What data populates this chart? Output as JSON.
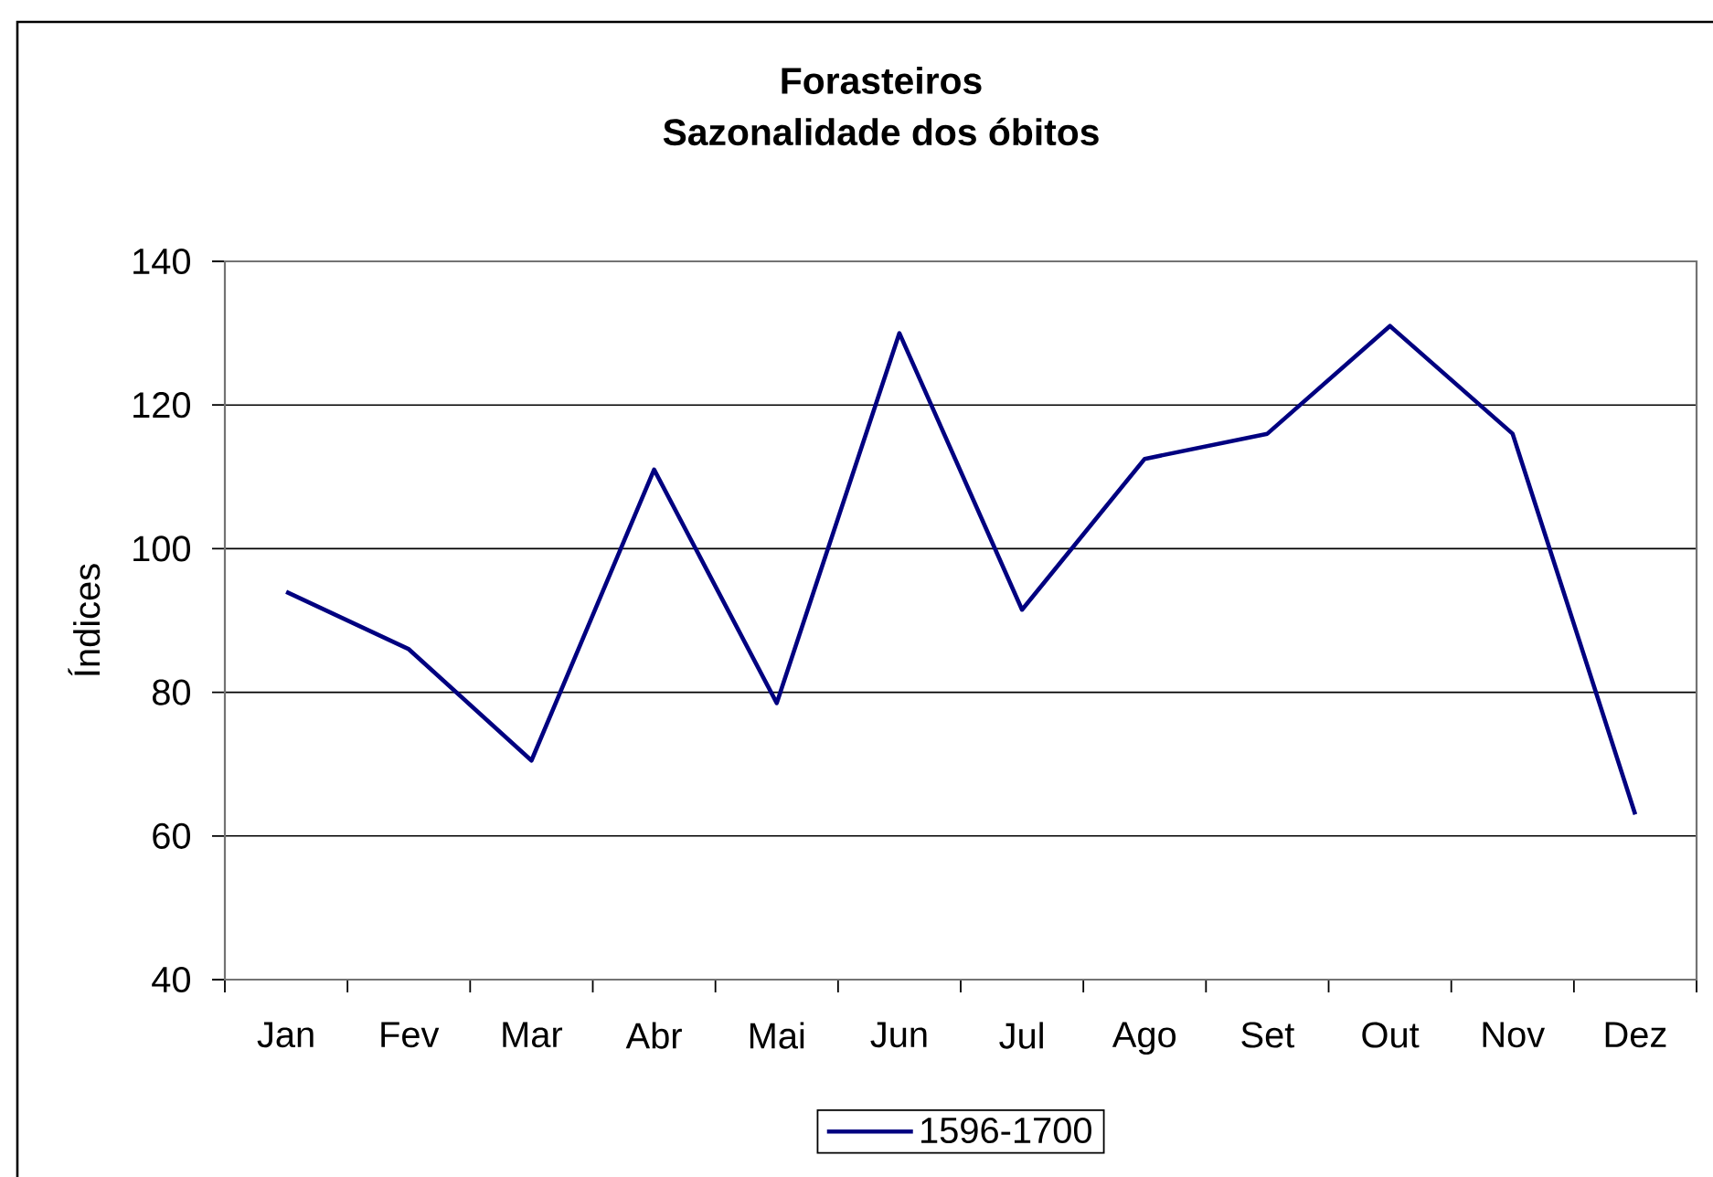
{
  "chart_data": {
    "type": "line",
    "title": "Forasteiros",
    "subtitle": "Sazonalidade dos óbitos",
    "ylabel": "Índices",
    "categories": [
      "Jan",
      "Fev",
      "Mar",
      "Abr",
      "Mai",
      "Jun",
      "Jul",
      "Ago",
      "Set",
      "Out",
      "Nov",
      "Dez"
    ],
    "series": [
      {
        "name": "1596-1700",
        "color": "#000080",
        "values": [
          94,
          86,
          70.5,
          111,
          78.5,
          130,
          91.5,
          112.5,
          116,
          131,
          116,
          63
        ]
      }
    ],
    "ylim": [
      40,
      140
    ],
    "yticks": [
      40,
      60,
      80,
      100,
      120,
      140
    ],
    "grid": "y",
    "legend": "bottom",
    "line_style": "solid"
  }
}
